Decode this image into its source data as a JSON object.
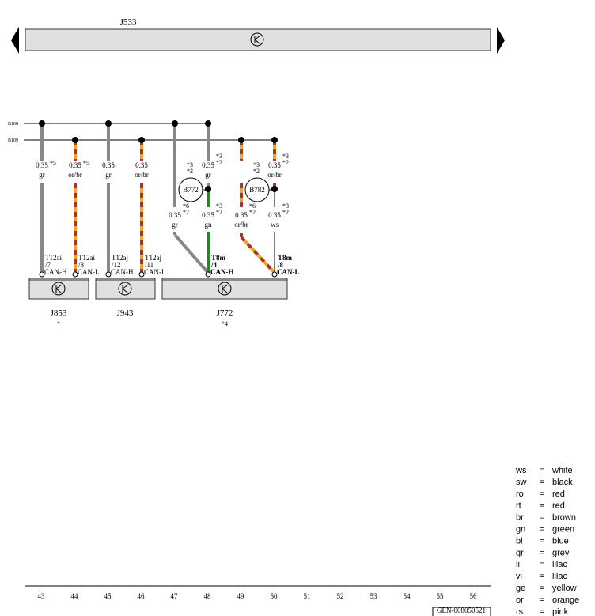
{
  "header": {
    "component": "J533"
  },
  "buses": [
    "B108",
    "B109"
  ],
  "wire_labels": [
    {
      "size": "0.35",
      "notes": [
        "*5"
      ],
      "color": "gr"
    },
    {
      "size": "0.35",
      "notes": [
        "*5"
      ],
      "color": "or/br"
    },
    {
      "size": "0.35",
      "color": "gr"
    },
    {
      "size": "0.35",
      "color": "or/br"
    },
    {
      "size": "0.35",
      "notes": [
        "*3",
        "*2"
      ],
      "color": "gr"
    },
    {
      "size": "0.35",
      "notes": [
        "*3",
        "*2"
      ],
      "color": "or/br"
    },
    {
      "size": "0.35",
      "notes": [
        "*6",
        "*2"
      ],
      "color": "gr"
    },
    {
      "size": "0.35",
      "notes": [
        "*3",
        "*2"
      ],
      "color": "gn"
    },
    {
      "size": "0.35",
      "notes": [
        "*6",
        "*2"
      ],
      "color": "or/br"
    },
    {
      "size": "0.35",
      "notes": [
        "*3",
        "*2"
      ],
      "color": "ws"
    }
  ],
  "splices": [
    {
      "label": "B772",
      "notes": [
        "*3",
        "*2"
      ]
    },
    {
      "label": "B782",
      "notes": [
        "*3",
        "*2"
      ]
    }
  ],
  "connectors": [
    {
      "name": "T12ai",
      "pin": "/7",
      "signal": "CAN-H"
    },
    {
      "name": "T12ai",
      "pin": "/8",
      "signal": "CAN-L"
    },
    {
      "name": "T12aj",
      "pin": "/12",
      "signal": "CAN-H"
    },
    {
      "name": "T12aj",
      "pin": "/11",
      "signal": "CAN-L"
    },
    {
      "name": "T8m",
      "pin": "/4",
      "signal": "CAN-H"
    },
    {
      "name": "T8m",
      "pin": "/8",
      "signal": "CAN-L"
    }
  ],
  "components": [
    {
      "label": "J853",
      "note": "*"
    },
    {
      "label": "J943"
    },
    {
      "label": "J772",
      "note": "*4"
    }
  ],
  "legend": {
    "separator": "=",
    "entries": [
      {
        "code": "ws",
        "meaning": "white"
      },
      {
        "code": "sw",
        "meaning": "black"
      },
      {
        "code": "ro",
        "meaning": "red"
      },
      {
        "code": "rt",
        "meaning": "red"
      },
      {
        "code": "br",
        "meaning": "brown"
      },
      {
        "code": "gn",
        "meaning": "green"
      },
      {
        "code": "bl",
        "meaning": "blue"
      },
      {
        "code": "gr",
        "meaning": "grey"
      },
      {
        "code": "li",
        "meaning": "lilac"
      },
      {
        "code": "vi",
        "meaning": "lilac"
      },
      {
        "code": "ge",
        "meaning": "yellow"
      },
      {
        "code": "or",
        "meaning": "orange"
      },
      {
        "code": "rs",
        "meaning": "pink"
      }
    ]
  },
  "footer": {
    "columns": [
      "43",
      "44",
      "45",
      "46",
      "47",
      "48",
      "49",
      "50",
      "51",
      "52",
      "53",
      "54",
      "55",
      "56"
    ],
    "drawing_id": "GEN-008050521"
  }
}
